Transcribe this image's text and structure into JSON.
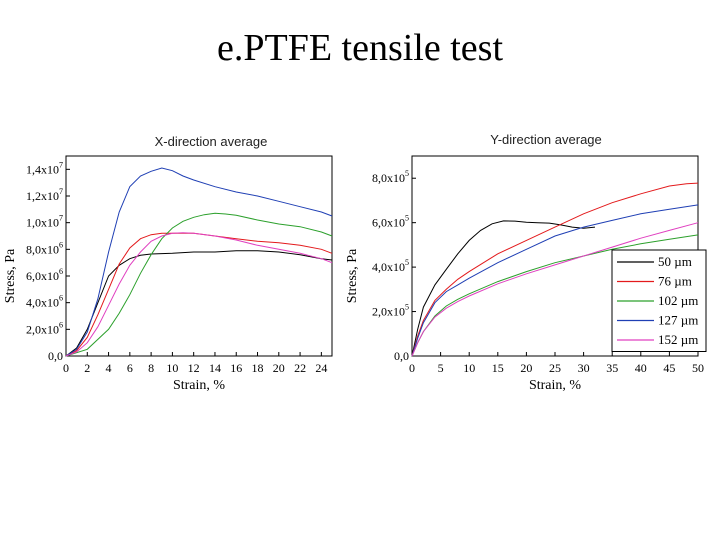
{
  "page": {
    "title": "e.PTFE tensile test"
  },
  "chart_data": [
    {
      "type": "line",
      "title": "X-direction average",
      "xlabel": "Strain, %",
      "ylabel": "Stress, Pa",
      "xlim": [
        0,
        25
      ],
      "ylim": [
        0,
        15000000
      ],
      "x_ticks": [
        0,
        2,
        4,
        6,
        8,
        10,
        12,
        14,
        16,
        18,
        20,
        22,
        24
      ],
      "x_tick_labels": [
        "0",
        "2",
        "4",
        "6",
        "8",
        "10",
        "12",
        "14",
        "16",
        "18",
        "20",
        "22",
        "24"
      ],
      "y_ticks": [
        0,
        2000000,
        4000000,
        6000000,
        8000000,
        10000000,
        12000000,
        14000000
      ],
      "y_tick_labels": [
        "0,0",
        "2,0x10^6",
        "4,0x10^6",
        "6,0x10^6",
        "8,0x10^6",
        "1,0x10^7",
        "1,2x10^7",
        "1,4x10^7"
      ],
      "grid": false,
      "legend": "none",
      "series": [
        {
          "color": "#000000",
          "x": [
            0,
            1,
            2,
            3,
            4,
            5,
            6,
            7,
            8,
            10,
            12,
            14,
            16,
            18,
            20,
            22,
            24,
            25
          ],
          "y": [
            0,
            600000,
            2000000,
            4000000,
            6000000,
            6800000,
            7300000,
            7550000,
            7650000,
            7700000,
            7800000,
            7800000,
            7900000,
            7900000,
            7800000,
            7600000,
            7300000,
            7200000
          ]
        },
        {
          "color": "#e31a1c",
          "x": [
            0,
            1,
            2,
            3,
            4,
            5,
            6,
            7,
            8,
            9,
            10,
            12,
            14,
            16,
            18,
            20,
            22,
            24,
            25
          ],
          "y": [
            0,
            400000,
            1400000,
            3100000,
            5000000,
            6900000,
            8100000,
            8800000,
            9100000,
            9200000,
            9200000,
            9200000,
            9000000,
            8800000,
            8600000,
            8500000,
            8300000,
            8000000,
            7700000
          ]
        },
        {
          "color": "#2ca02c",
          "x": [
            0,
            2,
            4,
            5,
            6,
            7,
            8,
            9,
            10,
            11,
            12,
            13,
            14,
            15,
            16,
            18,
            20,
            22,
            24,
            25
          ],
          "y": [
            0,
            500000,
            2000000,
            3200000,
            4600000,
            6200000,
            7600000,
            8800000,
            9600000,
            10100000,
            10400000,
            10600000,
            10700000,
            10650000,
            10550000,
            10200000,
            9900000,
            9700000,
            9300000,
            9000000
          ]
        },
        {
          "color": "#1f3fb4",
          "x": [
            0,
            1,
            2,
            3,
            4,
            5,
            6,
            7,
            8,
            9,
            10,
            11,
            12,
            14,
            16,
            18,
            20,
            22,
            24,
            25
          ],
          "y": [
            0,
            500000,
            1800000,
            4300000,
            7800000,
            10800000,
            12700000,
            13500000,
            13850000,
            14100000,
            13900000,
            13500000,
            13200000,
            12700000,
            12300000,
            12000000,
            11600000,
            11200000,
            10800000,
            10500000
          ]
        },
        {
          "color": "#e040c0",
          "x": [
            0,
            1,
            2,
            3,
            4,
            5,
            6,
            7,
            8,
            9,
            10,
            11,
            12,
            14,
            16,
            18,
            20,
            22,
            24,
            25
          ],
          "y": [
            0,
            300000,
            1000000,
            2200000,
            3800000,
            5400000,
            6800000,
            7800000,
            8600000,
            9000000,
            9200000,
            9250000,
            9200000,
            9000000,
            8700000,
            8300000,
            8000000,
            7700000,
            7300000,
            7000000
          ]
        }
      ]
    },
    {
      "type": "line",
      "title": "Y-direction average",
      "xlabel": "Strain, %",
      "ylabel": "Stress, Pa",
      "xlim": [
        0,
        50
      ],
      "ylim": [
        0,
        900000
      ],
      "x_ticks": [
        0,
        5,
        10,
        15,
        20,
        25,
        30,
        35,
        40,
        45,
        50
      ],
      "x_tick_labels": [
        "0",
        "5",
        "10",
        "15",
        "20",
        "25",
        "30",
        "35",
        "40",
        "45",
        "50"
      ],
      "y_ticks": [
        0,
        200000,
        400000,
        600000,
        800000
      ],
      "y_tick_labels": [
        "0,0",
        "2,0x10^5",
        "4,0x10^5",
        "6,0x10^5",
        "8,0x10^5"
      ],
      "grid": false,
      "legend": "right",
      "series": [
        {
          "name": "50 µm",
          "color": "#000000",
          "x": [
            0,
            1,
            2,
            4,
            6,
            8,
            10,
            12,
            14,
            16,
            18,
            20,
            22,
            24,
            26,
            28,
            30,
            32
          ],
          "y": [
            0,
            120000,
            220000,
            320000,
            390000,
            460000,
            520000,
            565000,
            595000,
            608000,
            607000,
            602000,
            600000,
            598000,
            590000,
            580000,
            575000,
            580000
          ]
        },
        {
          "name": "76 µm",
          "color": "#e31a1c",
          "x": [
            0,
            1,
            2,
            4,
            6,
            8,
            10,
            15,
            20,
            25,
            30,
            35,
            40,
            45,
            48,
            50
          ],
          "y": [
            0,
            90000,
            160000,
            250000,
            300000,
            345000,
            380000,
            460000,
            520000,
            580000,
            640000,
            690000,
            730000,
            765000,
            775000,
            778000
          ]
        },
        {
          "name": "102 µm",
          "color": "#2ca02c",
          "x": [
            0,
            1,
            2,
            4,
            6,
            8,
            10,
            15,
            20,
            25,
            30,
            35,
            40,
            45,
            50
          ],
          "y": [
            0,
            60000,
            110000,
            180000,
            225000,
            255000,
            280000,
            335000,
            380000,
            420000,
            450000,
            480000,
            505000,
            525000,
            545000
          ]
        },
        {
          "name": "127 µm",
          "color": "#1f3fb4",
          "x": [
            0,
            1,
            2,
            4,
            6,
            8,
            10,
            15,
            20,
            25,
            30,
            35,
            40,
            45,
            50
          ],
          "y": [
            0,
            80000,
            150000,
            240000,
            290000,
            320000,
            350000,
            420000,
            480000,
            540000,
            580000,
            610000,
            640000,
            660000,
            680000
          ]
        },
        {
          "name": "152 µm",
          "color": "#e040c0",
          "x": [
            0,
            1,
            2,
            4,
            6,
            8,
            10,
            15,
            20,
            25,
            30,
            35,
            40,
            45,
            50
          ],
          "y": [
            0,
            60000,
            110000,
            175000,
            215000,
            245000,
            270000,
            325000,
            370000,
            410000,
            450000,
            490000,
            530000,
            565000,
            600000
          ]
        }
      ]
    }
  ]
}
